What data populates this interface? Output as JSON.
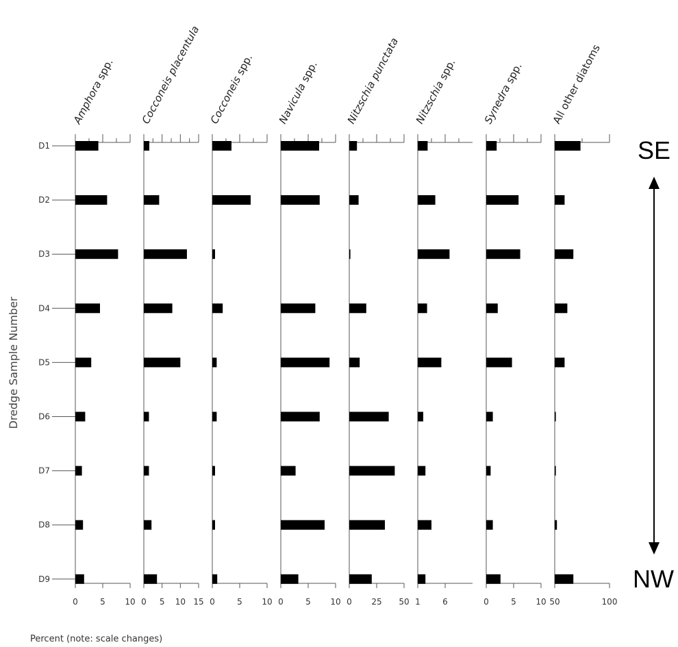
{
  "chart_data": {
    "type": "bar",
    "orientation": "horizontal",
    "ylabel": "Dredge Sample Number",
    "xlabel": "Percent (note: scale changes)",
    "categories": [
      "D1",
      "D2",
      "D3",
      "D4",
      "D5",
      "D6",
      "D7",
      "D8",
      "D9"
    ],
    "panels": [
      {
        "name": "Amphora spp.",
        "italic_part": "Amphora",
        "upright_part": " spp.",
        "xlim": [
          0,
          10
        ],
        "ticks": [
          0,
          5,
          10
        ],
        "minor_ticks": [
          2.5,
          7.5
        ],
        "values": [
          4.2,
          5.8,
          7.8,
          4.5,
          2.9,
          1.8,
          1.2,
          1.4,
          1.6
        ]
      },
      {
        "name": "Cocconeis placentula",
        "italic_part": "Cocconeis placentula",
        "upright_part": "",
        "xlim": [
          0,
          15
        ],
        "ticks": [
          0,
          5,
          10,
          15
        ],
        "minor_ticks": [
          2.5,
          7.5,
          12.5
        ],
        "values": [
          1.5,
          4.2,
          11.8,
          7.8,
          10,
          1.4,
          1.4,
          2.1,
          3.6
        ]
      },
      {
        "name": "Cocconeis spp.",
        "italic_part": "Cocconeis",
        "upright_part": " spp.",
        "xlim": [
          0,
          10
        ],
        "ticks": [
          0,
          5,
          10
        ],
        "minor_ticks": [
          2.5,
          7.5
        ],
        "values": [
          3.5,
          7,
          0.5,
          1.9,
          0.8,
          0.8,
          0.5,
          0.5,
          0.9
        ]
      },
      {
        "name": "Navicula spp.",
        "italic_part": "Navicula",
        "upright_part": " spp.",
        "xlim": [
          0,
          10
        ],
        "ticks": [
          0,
          5,
          10
        ],
        "minor_ticks": [
          2.5,
          7.5
        ],
        "values": [
          7,
          7.1,
          0,
          6.3,
          8.9,
          7.1,
          2.7,
          8,
          3.2
        ]
      },
      {
        "name": "Nitzschia punctata",
        "italic_part": "Nitzschia punctata",
        "upright_part": "",
        "xlim": [
          0,
          50
        ],
        "ticks": [
          0,
          25,
          50
        ],
        "minor_ticks": [
          12.5,
          37.5
        ],
        "values": [
          7,
          8.5,
          1,
          15.5,
          9.5,
          36,
          41.5,
          32.5,
          20.5
        ]
      },
      {
        "name": "Nitzschia spp.",
        "italic_part": "Nitzschia",
        "upright_part": " spp.",
        "xlim": [
          1,
          11
        ],
        "ticks": [
          1,
          6
        ],
        "minor_ticks": [
          3.5,
          8.5
        ],
        "values": [
          2.8,
          4.2,
          6.8,
          2.7,
          5.3,
          2,
          2.4,
          3.5,
          2.4
        ]
      },
      {
        "name": "Synedra spp.",
        "italic_part": "Synedra",
        "upright_part": " spp.",
        "xlim": [
          0,
          10
        ],
        "ticks": [
          0,
          5,
          10
        ],
        "minor_ticks": [
          2.5,
          7.5
        ],
        "values": [
          1.9,
          5.9,
          6.2,
          2.1,
          4.7,
          1.2,
          0.8,
          1.2,
          2.6
        ]
      },
      {
        "name": "All other diatoms",
        "italic_part": "",
        "upright_part": "All other diatoms",
        "xlim": [
          50,
          100
        ],
        "ticks": [
          50,
          100
        ],
        "minor_ticks": [
          75
        ],
        "values": [
          73.5,
          59,
          67,
          61.5,
          59,
          51,
          51,
          52,
          67
        ]
      }
    ],
    "annotations": {
      "top": "SE",
      "bottom": "NW"
    }
  }
}
